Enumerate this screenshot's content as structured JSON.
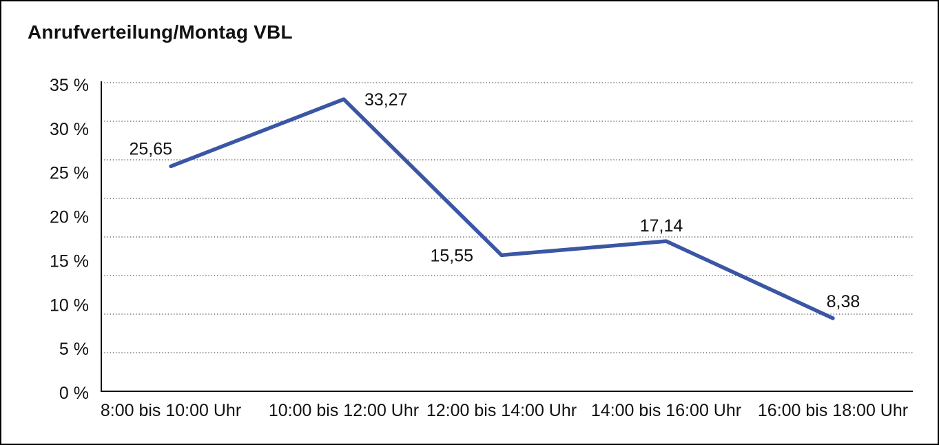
{
  "window": {
    "background": "#ffffff",
    "border_color": "#000000"
  },
  "chart_data": {
    "type": "line",
    "title": "Anrufverteilung/Montag VBL",
    "categories": [
      "8:00 bis 10:00 Uhr",
      "10:00 bis 12:00 Uhr",
      "12:00 bis 14:00 Uhr",
      "14:00 bis 16:00 Uhr",
      "16:00 bis 18:00 Uhr"
    ],
    "values": [
      25.65,
      33.27,
      15.55,
      17.14,
      8.38
    ],
    "point_labels": [
      "25,65",
      "33,27",
      "15,55",
      "17,14",
      "8,38"
    ],
    "y_tick_labels": [
      "35 %",
      "30 %",
      "25 %",
      "20 %",
      "15 %",
      "10 %",
      "5 %",
      "0 %"
    ],
    "ylim": [
      0,
      35
    ],
    "xlabel": "",
    "ylabel": "",
    "legend": "none",
    "grid": "horizontal-dotted",
    "colors": {
      "line": "#3A56A5",
      "axis": "#111111",
      "gridline": "#555555",
      "text": "#111111"
    }
  }
}
